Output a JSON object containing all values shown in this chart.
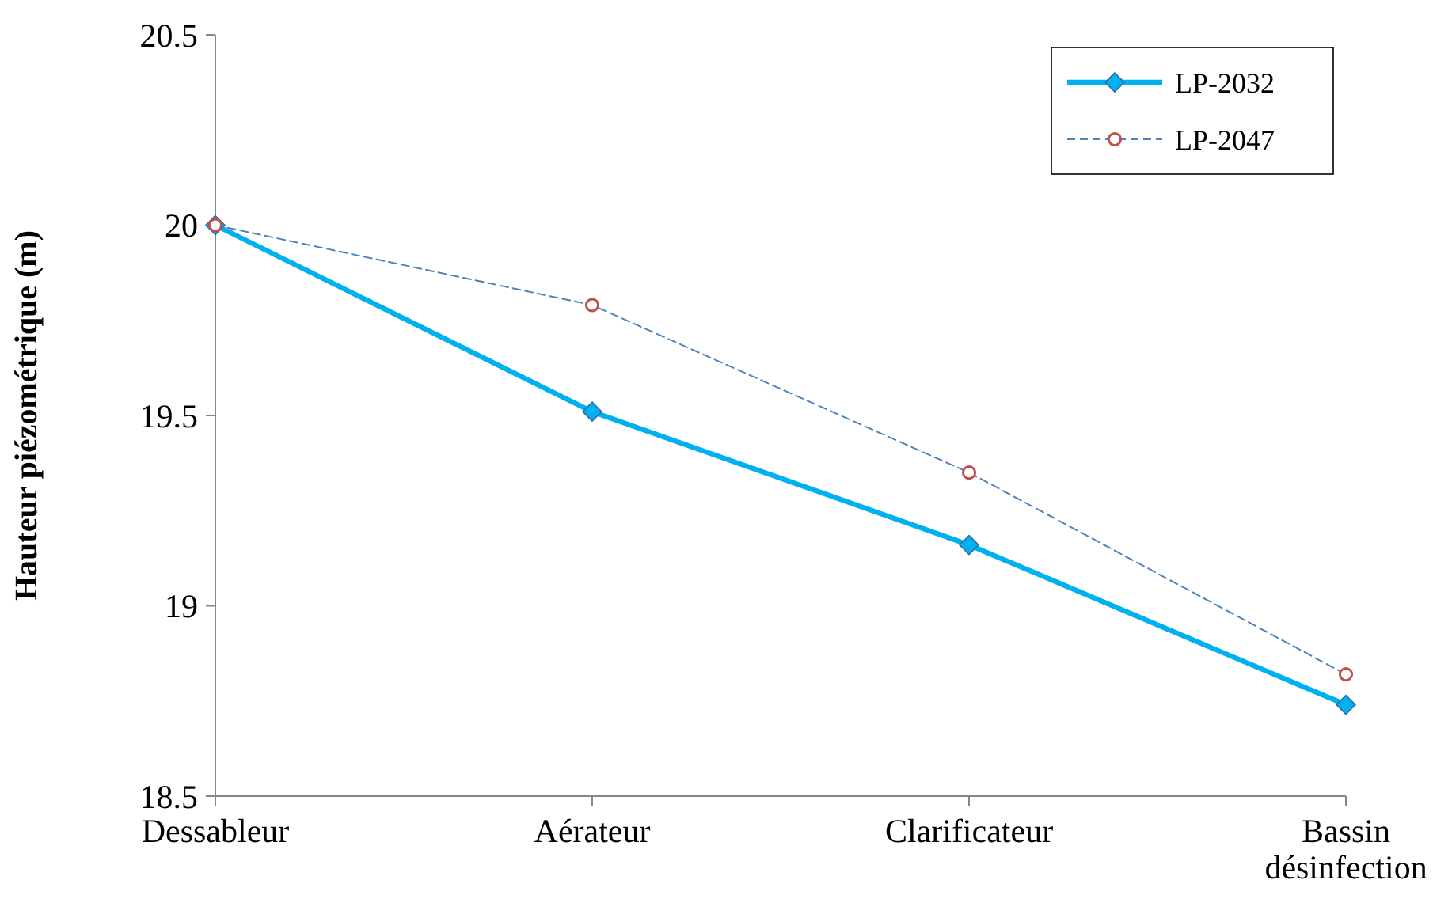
{
  "chart_data": {
    "type": "line",
    "ylabel": "Hauteur piézométrique (m)",
    "categories": [
      "Dessableur",
      "Aérateur",
      "Clarificateur",
      "Bassin désinfection"
    ],
    "series": [
      {
        "name": "LP-2032",
        "color": "#00b0f0",
        "values": [
          20,
          19.51,
          19.16,
          18.74
        ],
        "marker": "diamond",
        "line_style": "solid"
      },
      {
        "name": "LP-2047",
        "color": "#4f81bd",
        "values": [
          20,
          19.79,
          19.35,
          18.82
        ],
        "marker": "circle",
        "line_style": "dashed"
      }
    ],
    "ylim": [
      18.5,
      20.5
    ],
    "yticks": [
      18.5,
      19,
      19.5,
      20,
      20.5
    ],
    "grid": false,
    "legend": "top right"
  }
}
